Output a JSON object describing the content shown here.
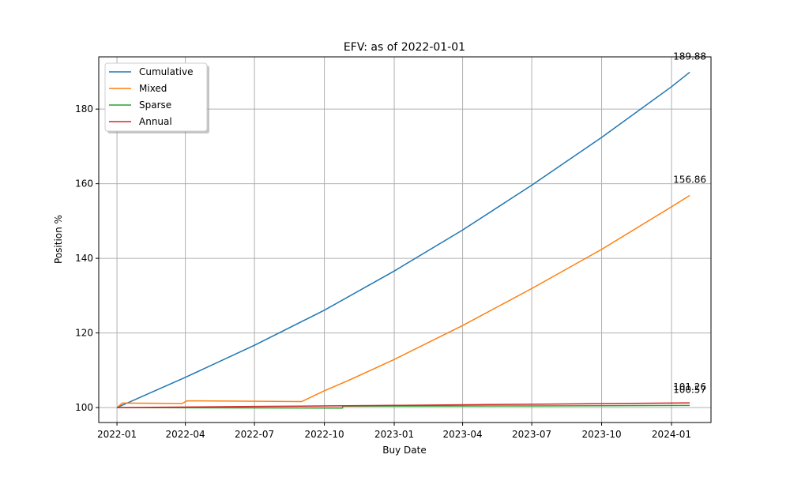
{
  "chart_data": {
    "type": "line",
    "title": "EFV: as of 2022-01-01",
    "xlabel": "Buy Date",
    "ylabel": "Position %",
    "xlim": [
      "2021-12-08",
      "2024-02-22"
    ],
    "ylim": [
      96,
      194
    ],
    "x_ticks": [
      "2022-01",
      "2022-04",
      "2022-07",
      "2022-10",
      "2023-01",
      "2023-04",
      "2023-07",
      "2023-10",
      "2024-01"
    ],
    "y_ticks": [
      100,
      120,
      140,
      160,
      180
    ],
    "grid": true,
    "legend_position": "upper left",
    "series": [
      {
        "name": "Cumulative",
        "color": "#1f77b4",
        "points": [
          [
            "2022-01-01",
            100.0
          ],
          [
            "2022-04-01",
            108.1
          ],
          [
            "2022-07-01",
            116.7
          ],
          [
            "2022-10-01",
            126.1
          ],
          [
            "2023-01-01",
            136.6
          ],
          [
            "2023-04-01",
            147.6
          ],
          [
            "2023-07-01",
            159.6
          ],
          [
            "2023-10-01",
            172.4
          ],
          [
            "2024-01-01",
            186.0
          ],
          [
            "2024-01-25",
            189.88
          ]
        ],
        "end_label": "189.88"
      },
      {
        "name": "Mixed",
        "color": "#ff7f0e",
        "points": [
          [
            "2022-01-01",
            100.0
          ],
          [
            "2022-01-08",
            101.2
          ],
          [
            "2022-03-28",
            101.1
          ],
          [
            "2022-04-03",
            101.8
          ],
          [
            "2022-06-01",
            101.75
          ],
          [
            "2022-09-01",
            101.6
          ],
          [
            "2022-10-01",
            104.5
          ],
          [
            "2022-11-01",
            107.2
          ],
          [
            "2023-01-01",
            112.9
          ],
          [
            "2023-04-01",
            122.0
          ],
          [
            "2023-07-01",
            131.9
          ],
          [
            "2023-10-01",
            142.4
          ],
          [
            "2024-01-01",
            153.8
          ],
          [
            "2024-01-25",
            156.86
          ]
        ],
        "end_label": "156.86"
      },
      {
        "name": "Sparse",
        "color": "#2ca02c",
        "points": [
          [
            "2022-01-01",
            100.0
          ],
          [
            "2022-10-25",
            99.85
          ],
          [
            "2022-10-25",
            100.4
          ],
          [
            "2023-07-01",
            100.45
          ],
          [
            "2024-01-25",
            100.57
          ]
        ],
        "end_label": "100.57"
      },
      {
        "name": "Annual",
        "color": "#d62728",
        "points": [
          [
            "2022-01-01",
            100.0
          ],
          [
            "2022-07-01",
            100.3
          ],
          [
            "2023-01-01",
            100.6
          ],
          [
            "2023-07-01",
            100.9
          ],
          [
            "2024-01-25",
            101.26
          ]
        ],
        "end_label": "101.26"
      }
    ]
  }
}
